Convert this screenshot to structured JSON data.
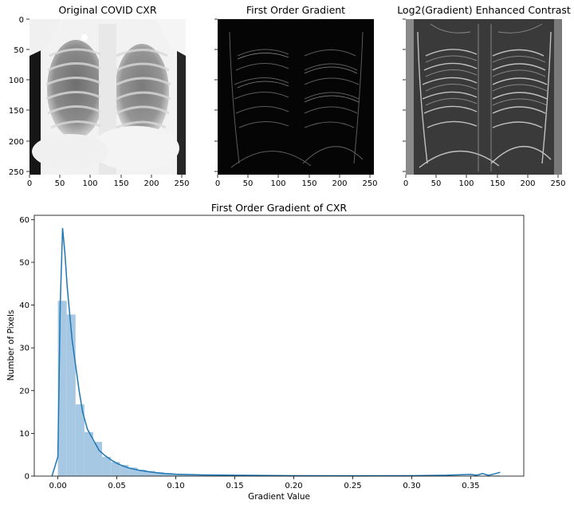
{
  "chart_data": [
    {
      "type": "image",
      "title": "Original COVID CXR",
      "xticks": [
        "0",
        "50",
        "100",
        "150",
        "200",
        "250"
      ],
      "yticks": [
        "0",
        "50",
        "100",
        "150",
        "200",
        "250"
      ],
      "xlim": [
        0,
        256
      ],
      "ylim": [
        256,
        0
      ]
    },
    {
      "type": "image",
      "title": "First Order Gradient",
      "xticks": [
        "0",
        "50",
        "100",
        "150",
        "200",
        "250"
      ],
      "xlim": [
        0,
        256
      ],
      "ylim": [
        256,
        0
      ]
    },
    {
      "type": "image",
      "title": "Log2(Gradient) Enhanced Contrast",
      "xticks": [
        "0",
        "50",
        "100",
        "150",
        "200",
        "250"
      ],
      "xlim": [
        0,
        256
      ],
      "ylim": [
        256,
        0
      ]
    },
    {
      "type": "bar",
      "title": "First Order Gradient of CXR",
      "xlabel": "Gradient Value",
      "ylabel": "Number of Pixels",
      "xlim": [
        -0.02,
        0.395
      ],
      "ylim": [
        0,
        61
      ],
      "xticks": [
        0.0,
        0.05,
        0.1,
        0.15,
        0.2,
        0.25,
        0.3,
        0.35
      ],
      "xtick_labels": [
        "0.00",
        "0.05",
        "0.10",
        "0.15",
        "0.20",
        "0.25",
        "0.30",
        "0.35"
      ],
      "yticks": [
        0,
        10,
        20,
        30,
        40,
        50,
        60
      ],
      "ytick_labels": [
        "0",
        "10",
        "20",
        "30",
        "40",
        "50",
        "60"
      ],
      "bin_edges": [
        0.0,
        0.0075,
        0.015,
        0.0225,
        0.03,
        0.0375,
        0.045,
        0.0525,
        0.06,
        0.0675,
        0.075,
        0.0825,
        0.09,
        0.0975,
        0.105,
        0.1125,
        0.12,
        0.1275,
        0.135,
        0.1425,
        0.15,
        0.1575,
        0.165,
        0.1725,
        0.18,
        0.1875,
        0.195,
        0.2025,
        0.21,
        0.2175,
        0.225,
        0.2325,
        0.24,
        0.2475,
        0.255,
        0.2625,
        0.27,
        0.2775,
        0.285,
        0.2925,
        0.3,
        0.3075,
        0.315,
        0.3225,
        0.33,
        0.3375,
        0.345,
        0.3525,
        0.36,
        0.3675,
        0.375
      ],
      "values": [
        41,
        37.8,
        16.8,
        10.3,
        8.0,
        4.5,
        3.3,
        2.6,
        2.0,
        1.5,
        1.2,
        0.9,
        0.7,
        0.5,
        0.4,
        0.35,
        0.3,
        0.25,
        0.2,
        0.18,
        0.15,
        0.13,
        0.12,
        0.1,
        0.09,
        0.08,
        0.07,
        0.07,
        0.06,
        0.06,
        0.05,
        0.05,
        0.05,
        0.05,
        0.04,
        0.04,
        0.04,
        0.04,
        0.04,
        0.04,
        0.04,
        0.04,
        0.04,
        0.04,
        0.04,
        0.05,
        0.06,
        0.08,
        0.1,
        0.15
      ],
      "kde": {
        "x": [
          -0.005,
          0.0,
          0.002,
          0.004,
          0.006,
          0.008,
          0.01,
          0.012,
          0.015,
          0.018,
          0.021,
          0.025,
          0.03,
          0.035,
          0.04,
          0.045,
          0.05,
          0.055,
          0.06,
          0.07,
          0.08,
          0.09,
          0.1,
          0.12,
          0.15,
          0.2,
          0.25,
          0.3,
          0.33,
          0.35,
          0.355,
          0.36,
          0.365,
          0.37,
          0.375
        ],
        "y": [
          0,
          4.5,
          40,
          58,
          52,
          44,
          38,
          32,
          26,
          20,
          15,
          11,
          8.5,
          6,
          4.8,
          3.8,
          3.0,
          2.4,
          1.9,
          1.3,
          0.9,
          0.6,
          0.45,
          0.3,
          0.2,
          0.1,
          0.08,
          0.1,
          0.2,
          0.4,
          0.2,
          0.6,
          0.2,
          0.5,
          0.9
        ]
      }
    }
  ],
  "colors": {
    "bar": "#a6c8e2",
    "kde_line": "#1f77b4"
  }
}
